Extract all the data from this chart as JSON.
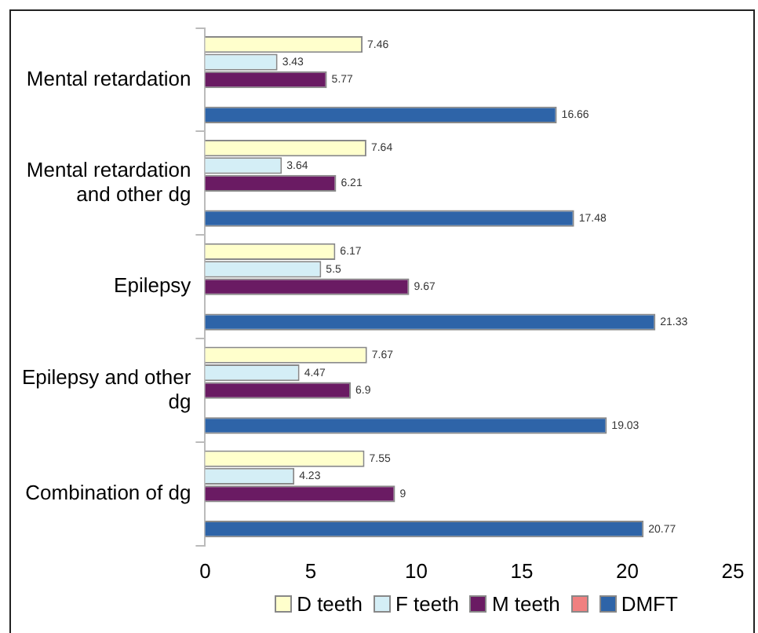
{
  "chart_data": {
    "type": "bar",
    "orientation": "horizontal",
    "categories": [
      "Mental retardation",
      "Mental retardation and other dg",
      "Epilepsy",
      "Epilepsy and other dg",
      "Combination of dg"
    ],
    "series": [
      {
        "name": "D teeth",
        "color": "#ffffcc",
        "values": [
          7.46,
          7.64,
          6.17,
          7.67,
          7.55
        ]
      },
      {
        "name": "F teeth",
        "color": "#d4eef6",
        "values": [
          3.43,
          3.64,
          5.5,
          4.47,
          4.23
        ]
      },
      {
        "name": "M teeth",
        "color": "#6a1b63",
        "values": [
          5.77,
          6.21,
          9.67,
          6.9,
          9
        ]
      },
      {
        "color": "#f08080",
        "values": [
          null,
          null,
          null,
          null,
          null
        ]
      },
      {
        "name": "DMFT",
        "color": "#2e64a8",
        "values": [
          16.66,
          17.48,
          21.33,
          19.03,
          20.77
        ]
      }
    ],
    "xlim": [
      0,
      25
    ],
    "xticks": [
      0,
      5,
      10,
      15,
      20,
      25
    ],
    "grid": false,
    "legend": "bottom",
    "data_labels": true
  }
}
